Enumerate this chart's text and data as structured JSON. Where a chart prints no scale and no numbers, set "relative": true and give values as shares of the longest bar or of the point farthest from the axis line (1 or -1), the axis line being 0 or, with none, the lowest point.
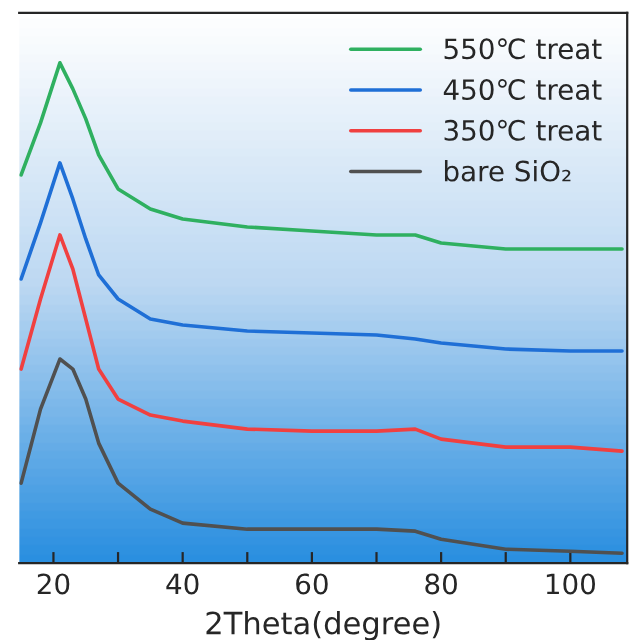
{
  "chart_data": {
    "type": "line",
    "relative": true,
    "xlabel": "2Theta(degree)",
    "x": [
      15,
      18,
      21,
      23,
      25,
      27,
      30,
      35,
      40,
      50,
      60,
      70,
      76,
      80,
      90,
      100,
      108
    ],
    "xlim": [
      14.7,
      108.8
    ],
    "xticks": [
      20,
      {
        "value": 30,
        "label": null
      },
      40,
      {
        "value": 50,
        "label": null
      },
      60,
      {
        "value": 70,
        "label": null
      },
      80,
      {
        "value": 90,
        "label": null
      },
      100
    ],
    "legend": "top right",
    "grid": false,
    "tick_labels": "x",
    "line_style": "solid",
    "marker": "none",
    "series": [
      {
        "name": "550℃ treat",
        "color": "#2fb060",
        "values": [
          0.776,
          0.88,
          1,
          0.948,
          0.888,
          0.816,
          0.748,
          0.708,
          0.688,
          0.672,
          0.664,
          0.656,
          0.656,
          0.64,
          0.628,
          0.628,
          0.628
        ]
      },
      {
        "name": "450℃ treat",
        "color": "#1f6fd6",
        "values": [
          0.568,
          0.68,
          0.8,
          0.728,
          0.648,
          0.576,
          0.528,
          0.488,
          0.476,
          0.464,
          0.46,
          0.456,
          0.448,
          0.44,
          0.428,
          0.424,
          0.424
        ]
      },
      {
        "name": "350℃ treat",
        "color": "#f04040",
        "values": [
          0.388,
          0.528,
          0.656,
          0.588,
          0.488,
          0.388,
          0.328,
          0.296,
          0.284,
          0.268,
          0.264,
          0.264,
          0.268,
          0.248,
          0.232,
          0.232,
          0.224
        ]
      },
      {
        "name": "bare SiO₂",
        "color": "#505050",
        "values": [
          0.16,
          0.308,
          0.408,
          0.388,
          0.328,
          0.24,
          0.16,
          0.108,
          0.08,
          0.068,
          0.068,
          0.068,
          0.064,
          0.048,
          0.028,
          0.024,
          0.02
        ]
      }
    ]
  }
}
